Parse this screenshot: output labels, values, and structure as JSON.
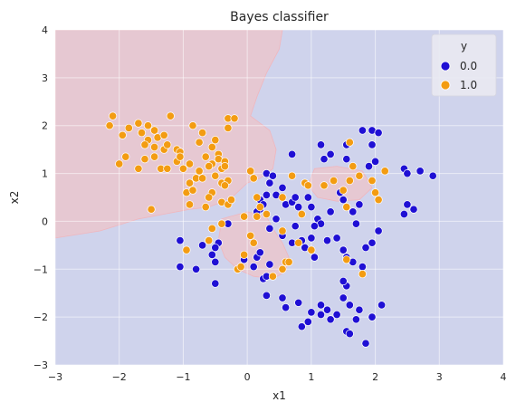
{
  "chart_data": {
    "type": "scatter",
    "title": "Bayes classifier",
    "xlabel": "x1",
    "ylabel": "x2",
    "xlim": [
      -3,
      4
    ],
    "ylim": [
      -3,
      4
    ],
    "xticks": [
      "-3",
      "-2",
      "-1",
      "0",
      "1",
      "2",
      "3",
      "4"
    ],
    "yticks": [
      "-3",
      "-2",
      "-1",
      "0",
      "1",
      "2",
      "3",
      "4"
    ],
    "grid": true,
    "legend": {
      "title": "y",
      "placement": "top-right"
    },
    "colors": {
      "class0": "#1f0fd4",
      "class1": "#f39c12",
      "region0": "#cfd3ec",
      "region1": "#e6c8d2",
      "axes_bg": "#eaeaf2",
      "grid": "#ffffff"
    },
    "decision_regions": {
      "description_class1_regions_in_data_units": true,
      "class1_main": [
        [
          -3,
          4
        ],
        [
          0.55,
          4
        ],
        [
          0.5,
          3.6
        ],
        [
          0.3,
          3.1
        ],
        [
          0.15,
          2.6
        ],
        [
          0.05,
          2.2
        ],
        [
          0.35,
          1.9
        ],
        [
          0.45,
          1.5
        ],
        [
          0.4,
          1.1
        ],
        [
          0.2,
          0.9
        ],
        [
          0.0,
          0.8
        ],
        [
          -0.2,
          0.55
        ],
        [
          -0.4,
          0.4
        ],
        [
          -0.6,
          0.3
        ],
        [
          -0.9,
          0.25
        ],
        [
          -1.3,
          0.15
        ],
        [
          -1.7,
          0.05
        ],
        [
          -2.3,
          -0.2
        ],
        [
          -3,
          -0.35
        ]
      ],
      "class1_lower": [
        [
          -0.4,
          0.05
        ],
        [
          0.0,
          0.2
        ],
        [
          0.3,
          0.1
        ],
        [
          0.4,
          -0.15
        ],
        [
          0.55,
          -0.45
        ],
        [
          0.65,
          -0.75
        ],
        [
          0.6,
          -1.05
        ],
        [
          0.4,
          -1.2
        ],
        [
          0.1,
          -1.15
        ],
        [
          -0.15,
          -1.0
        ],
        [
          -0.35,
          -0.75
        ],
        [
          -0.45,
          -0.4
        ]
      ],
      "class1_island": [
        [
          1.05,
          1.1
        ],
        [
          1.4,
          1.15
        ],
        [
          1.8,
          1.05
        ],
        [
          1.95,
          0.7
        ],
        [
          1.75,
          0.45
        ],
        [
          1.4,
          0.42
        ],
        [
          1.1,
          0.5
        ],
        [
          0.95,
          0.75
        ]
      ]
    },
    "series": [
      {
        "name": "0.0",
        "points": [
          [
            0.7,
            1.4
          ],
          [
            1.15,
            1.6
          ],
          [
            1.3,
            1.4
          ],
          [
            1.55,
            1.3
          ],
          [
            1.8,
            1.9
          ],
          [
            1.95,
            1.9
          ],
          [
            2.05,
            1.85
          ],
          [
            1.55,
            1.6
          ],
          [
            1.95,
            1.6
          ],
          [
            1.2,
            1.3
          ],
          [
            1.9,
            1.15
          ],
          [
            2.0,
            1.25
          ],
          [
            2.45,
            1.1
          ],
          [
            2.5,
            1.0
          ],
          [
            2.7,
            1.05
          ],
          [
            2.9,
            0.95
          ],
          [
            0.3,
            1.0
          ],
          [
            0.4,
            0.95
          ],
          [
            0.55,
            0.7
          ],
          [
            0.35,
            0.8
          ],
          [
            0.45,
            0.55
          ],
          [
            0.3,
            0.55
          ],
          [
            0.2,
            0.45
          ],
          [
            0.25,
            0.35
          ],
          [
            0.2,
            0.25
          ],
          [
            0.15,
            0.2
          ],
          [
            0.6,
            0.35
          ],
          [
            0.7,
            0.4
          ],
          [
            0.75,
            0.5
          ],
          [
            0.8,
            0.3
          ],
          [
            0.95,
            0.5
          ],
          [
            1.0,
            0.3
          ],
          [
            1.1,
            0.05
          ],
          [
            1.15,
            -0.05
          ],
          [
            1.05,
            -0.1
          ],
          [
            1.3,
            0.2
          ],
          [
            1.45,
            0.6
          ],
          [
            1.5,
            0.45
          ],
          [
            1.65,
            0.2
          ],
          [
            1.7,
            -0.05
          ],
          [
            1.75,
            0.35
          ],
          [
            1.95,
            -0.45
          ],
          [
            2.05,
            -0.2
          ],
          [
            1.85,
            -0.55
          ],
          [
            2.45,
            0.15
          ],
          [
            2.5,
            0.35
          ],
          [
            2.6,
            0.25
          ],
          [
            0.45,
            0.05
          ],
          [
            0.35,
            -0.15
          ],
          [
            0.55,
            -0.3
          ],
          [
            0.7,
            -0.45
          ],
          [
            0.75,
            -0.1
          ],
          [
            0.85,
            -0.4
          ],
          [
            0.9,
            -0.55
          ],
          [
            1.0,
            -0.35
          ],
          [
            1.05,
            -0.75
          ],
          [
            1.25,
            -0.4
          ],
          [
            1.4,
            -0.35
          ],
          [
            1.5,
            -0.6
          ],
          [
            1.55,
            -0.75
          ],
          [
            1.65,
            -0.85
          ],
          [
            1.8,
            -0.95
          ],
          [
            -1.05,
            -0.4
          ],
          [
            -0.7,
            -0.5
          ],
          [
            -0.45,
            -0.45
          ],
          [
            -0.5,
            -0.55
          ],
          [
            -0.55,
            -0.7
          ],
          [
            -0.5,
            -0.85
          ],
          [
            -1.05,
            -0.95
          ],
          [
            -0.8,
            -1.0
          ],
          [
            -0.5,
            -1.3
          ],
          [
            -0.4,
            -0.05
          ],
          [
            -0.3,
            -0.05
          ],
          [
            -0.05,
            -0.8
          ],
          [
            0.1,
            -0.95
          ],
          [
            0.15,
            -0.75
          ],
          [
            0.25,
            -1.2
          ],
          [
            0.3,
            -1.15
          ],
          [
            0.2,
            -0.65
          ],
          [
            0.35,
            -0.9
          ],
          [
            0.3,
            -1.55
          ],
          [
            0.55,
            -1.6
          ],
          [
            0.8,
            -1.7
          ],
          [
            1.0,
            -1.9
          ],
          [
            0.6,
            -1.8
          ],
          [
            0.85,
            -2.2
          ],
          [
            0.95,
            -2.1
          ],
          [
            1.15,
            -1.95
          ],
          [
            1.25,
            -1.85
          ],
          [
            1.3,
            -2.05
          ],
          [
            1.15,
            -1.75
          ],
          [
            1.4,
            -1.95
          ],
          [
            1.5,
            -1.6
          ],
          [
            1.55,
            -1.35
          ],
          [
            1.6,
            -1.75
          ],
          [
            1.55,
            -2.3
          ],
          [
            1.6,
            -2.35
          ],
          [
            1.75,
            -1.85
          ],
          [
            1.7,
            -2.05
          ],
          [
            1.85,
            -2.55
          ],
          [
            1.95,
            -2.0
          ],
          [
            2.1,
            -1.75
          ],
          [
            1.5,
            -1.25
          ]
        ]
      },
      {
        "name": "1.0",
        "points": [
          [
            -2.1,
            2.2
          ],
          [
            -2.15,
            2.0
          ],
          [
            -1.85,
            1.95
          ],
          [
            -1.7,
            2.05
          ],
          [
            -1.55,
            2.0
          ],
          [
            -1.65,
            1.85
          ],
          [
            -1.45,
            1.9
          ],
          [
            -1.4,
            1.75
          ],
          [
            -1.3,
            1.8
          ],
          [
            -1.2,
            2.2
          ],
          [
            -1.45,
            1.55
          ],
          [
            -1.55,
            1.7
          ],
          [
            -1.6,
            1.6
          ],
          [
            -1.3,
            1.5
          ],
          [
            -1.25,
            1.6
          ],
          [
            -1.1,
            1.5
          ],
          [
            -0.85,
            2.0
          ],
          [
            -0.75,
            1.65
          ],
          [
            -0.7,
            1.85
          ],
          [
            -0.5,
            1.7
          ],
          [
            -0.3,
            1.95
          ],
          [
            -0.3,
            2.15
          ],
          [
            -0.2,
            2.15
          ],
          [
            -1.95,
            1.8
          ],
          [
            -1.9,
            1.35
          ],
          [
            -2.0,
            1.2
          ],
          [
            -1.7,
            1.1
          ],
          [
            -1.6,
            1.3
          ],
          [
            -1.45,
            1.35
          ],
          [
            -1.35,
            1.1
          ],
          [
            -1.25,
            1.1
          ],
          [
            -1.1,
            1.25
          ],
          [
            -1.05,
            1.45
          ],
          [
            -1.05,
            1.35
          ],
          [
            -1.0,
            1.1
          ],
          [
            -0.9,
            1.2
          ],
          [
            -0.55,
            1.2
          ],
          [
            -0.55,
            1.55
          ],
          [
            -0.45,
            1.4
          ],
          [
            -0.45,
            1.3
          ],
          [
            -0.35,
            1.25
          ],
          [
            -0.4,
            1.1
          ],
          [
            -0.35,
            1.15
          ],
          [
            -0.65,
            1.35
          ],
          [
            -0.6,
            1.15
          ],
          [
            -0.75,
            1.05
          ],
          [
            -0.8,
            0.9
          ],
          [
            -0.9,
            0.8
          ],
          [
            -0.95,
            0.6
          ],
          [
            -0.85,
            0.65
          ],
          [
            -0.7,
            0.9
          ],
          [
            -0.55,
            0.6
          ],
          [
            -0.5,
            0.95
          ],
          [
            -0.4,
            0.8
          ],
          [
            -0.3,
            0.85
          ],
          [
            -0.35,
            0.75
          ],
          [
            -0.4,
            0.4
          ],
          [
            -0.3,
            0.35
          ],
          [
            -0.25,
            0.45
          ],
          [
            -0.6,
            0.5
          ],
          [
            -0.65,
            0.3
          ],
          [
            -0.9,
            0.35
          ],
          [
            -1.5,
            0.25
          ],
          [
            0.05,
            1.05
          ],
          [
            0.1,
            0.9
          ],
          [
            -0.4,
            -0.05
          ],
          [
            -0.55,
            -0.15
          ],
          [
            -0.6,
            -0.4
          ],
          [
            -0.95,
            -0.6
          ],
          [
            -0.15,
            -1.0
          ],
          [
            -0.1,
            -0.95
          ],
          [
            -0.05,
            -0.7
          ],
          [
            -0.05,
            0.1
          ],
          [
            0.05,
            -0.3
          ],
          [
            0.1,
            -0.45
          ],
          [
            0.15,
            0.1
          ],
          [
            0.15,
            0.5
          ],
          [
            0.2,
            0.3
          ],
          [
            0.3,
            0.15
          ],
          [
            0.55,
            0.5
          ],
          [
            0.55,
            -0.2
          ],
          [
            0.6,
            -0.85
          ],
          [
            0.65,
            -0.85
          ],
          [
            0.55,
            -1.0
          ],
          [
            0.4,
            -1.15
          ],
          [
            0.7,
            0.95
          ],
          [
            0.9,
            0.8
          ],
          [
            0.95,
            0.75
          ],
          [
            0.85,
            0.15
          ],
          [
            0.8,
            -0.45
          ],
          [
            1.2,
            0.75
          ],
          [
            1.35,
            0.85
          ],
          [
            1.5,
            0.65
          ],
          [
            1.55,
            0.3
          ],
          [
            1.6,
            0.85
          ],
          [
            1.65,
            1.15
          ],
          [
            1.75,
            0.95
          ],
          [
            1.95,
            0.85
          ],
          [
            2.0,
            0.6
          ],
          [
            2.05,
            0.45
          ],
          [
            2.15,
            1.05
          ],
          [
            1.55,
            -0.8
          ],
          [
            1.8,
            -1.1
          ],
          [
            1.0,
            -0.6
          ],
          [
            1.6,
            1.65
          ]
        ]
      }
    ]
  }
}
